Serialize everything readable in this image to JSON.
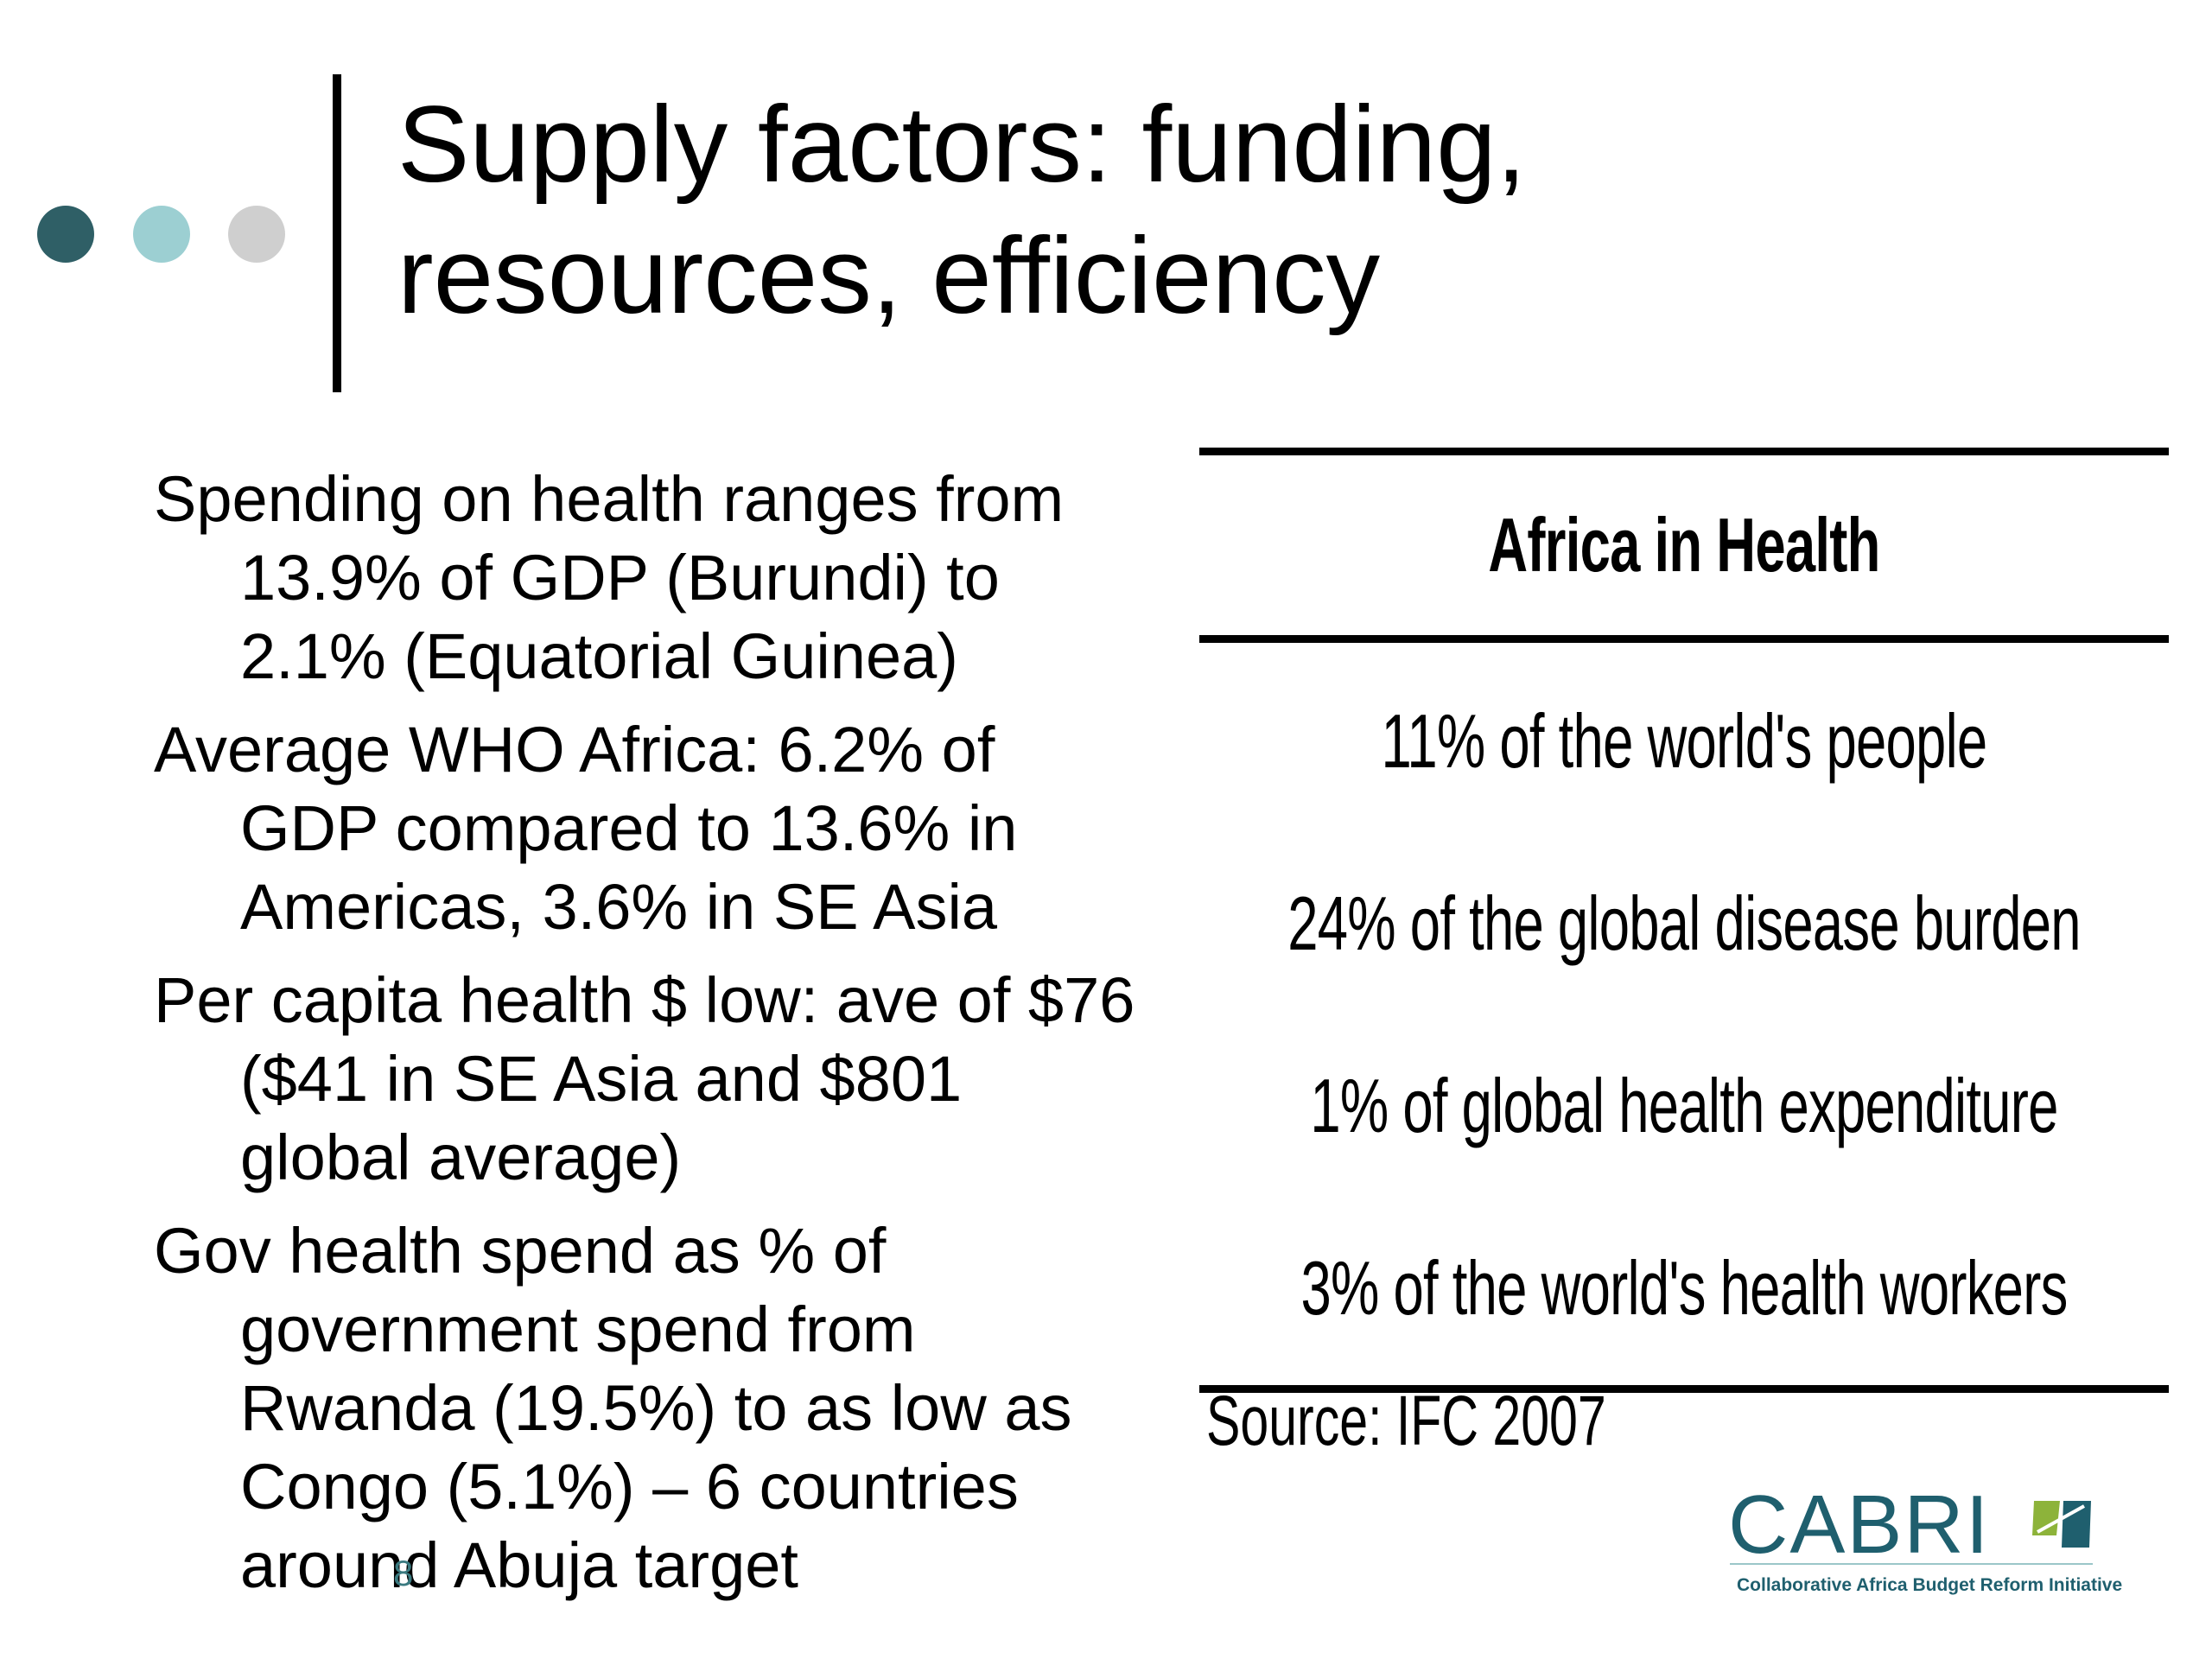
{
  "slide": {
    "title_line1": "Supply factors: funding,",
    "title_line2": "resources, efficiency",
    "page_number": "8"
  },
  "bullets": [
    "Spending on health ranges from 13.9% of GDP (Burundi) to 2.1% (Equatorial Guinea)",
    "Average WHO Africa: 6.2% of GDP compared to 13.6% in Americas, 3.6% in SE Asia",
    "Per capita health $ low: ave of $76 ($41 in SE Asia and $801 global average)",
    "Gov health spend as % of government spend from Rwanda (19.5%) to as low as Congo (5.1%) – 6 countries around Abuja target"
  ],
  "table": {
    "heading": "Africa in Health",
    "rows": [
      "11% of the world's people",
      "24% of the global disease burden",
      "1% of global health expenditure",
      "3% of the world's health workers"
    ],
    "source": "Source: IFC 2007"
  },
  "logo": {
    "name": "CABRI",
    "tagline": "Collaborative Africa Budget Reform Initiative"
  },
  "colors": {
    "dot_dark": "#2f5f66",
    "dot_light": "#9ccfd2",
    "dot_grey": "#cfcfcf",
    "logo_teal": "#1f5f6e",
    "logo_green": "#8db33a"
  }
}
